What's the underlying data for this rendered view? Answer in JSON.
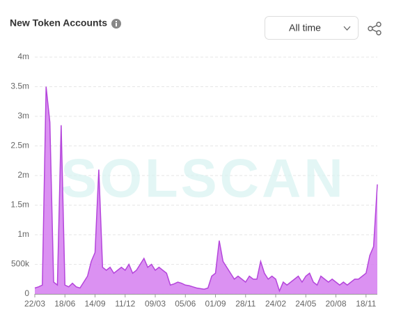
{
  "header": {
    "title": "New Token Accounts",
    "range": "All time"
  },
  "chart_data": {
    "type": "area",
    "watermark": "SOLSCAN",
    "color": "#d57ef0",
    "line_color": "#b445db",
    "categories": [
      "22/03",
      null,
      null,
      null,
      null,
      null,
      null,
      null,
      "18/06",
      null,
      null,
      null,
      null,
      null,
      null,
      null,
      "14/09",
      null,
      null,
      null,
      null,
      null,
      null,
      null,
      "11/12",
      null,
      null,
      null,
      null,
      null,
      null,
      null,
      "09/03",
      null,
      null,
      null,
      null,
      null,
      null,
      null,
      "05/06",
      null,
      null,
      null,
      null,
      null,
      null,
      null,
      "01/09",
      null,
      null,
      null,
      null,
      null,
      null,
      null,
      "28/11",
      null,
      null,
      null,
      null,
      null,
      null,
      null,
      "24/02",
      null,
      null,
      null,
      null,
      null,
      null,
      null,
      "24/05",
      null,
      null,
      null,
      null,
      null,
      null,
      null,
      "20/08",
      null,
      null,
      null,
      null,
      null,
      null,
      null,
      "18/11",
      null,
      null,
      null
    ],
    "values": [
      100000,
      120000,
      150000,
      3500000,
      2900000,
      200000,
      150000,
      2850000,
      150000,
      120000,
      180000,
      120000,
      100000,
      200000,
      300000,
      550000,
      700000,
      2100000,
      450000,
      400000,
      450000,
      350000,
      400000,
      450000,
      400000,
      500000,
      350000,
      400000,
      500000,
      600000,
      450000,
      500000,
      400000,
      450000,
      400000,
      350000,
      150000,
      170000,
      200000,
      180000,
      150000,
      140000,
      120000,
      100000,
      90000,
      80000,
      100000,
      300000,
      350000,
      900000,
      550000,
      450000,
      350000,
      250000,
      300000,
      250000,
      200000,
      300000,
      250000,
      250000,
      550000,
      350000,
      250000,
      300000,
      250000,
      50000,
      200000,
      150000,
      200000,
      250000,
      300000,
      200000,
      300000,
      350000,
      200000,
      150000,
      300000,
      250000,
      200000,
      250000,
      200000,
      150000,
      200000,
      150000,
      200000,
      250000,
      250000,
      300000,
      350000,
      650000,
      800000,
      1850000
    ],
    "ylim": [
      0,
      4000000
    ],
    "yticks": [
      0,
      {
        "value": 500000,
        "label": "500k"
      },
      {
        "value": 1000000,
        "label": "1m"
      },
      {
        "value": 1500000,
        "label": "1.5m"
      },
      {
        "value": 2000000,
        "label": "2m"
      },
      {
        "value": 2500000,
        "label": "2.5m"
      },
      {
        "value": 3000000,
        "label": "3m"
      },
      {
        "value": 3500000,
        "label": "3.5m"
      },
      {
        "value": 4000000,
        "label": "4m"
      }
    ],
    "grid": true
  }
}
